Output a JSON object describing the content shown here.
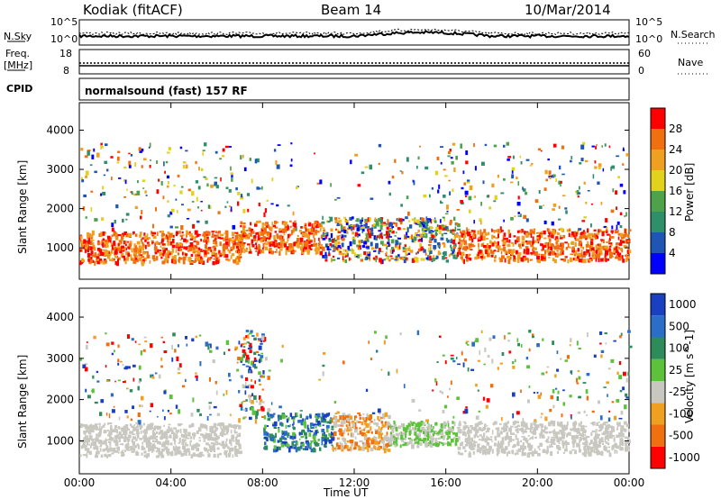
{
  "header": {
    "station": "Kodiak (fitACF)",
    "beam": "Beam 14",
    "date": "10/Mar/2014"
  },
  "strip": {
    "nsky_label": "N.Sky",
    "nsky_top": "10^5",
    "nsky_bottom": "10^0",
    "nsearch_label": "N.Search",
    "nsearch_top": "10^5",
    "nsearch_bottom": "10^0",
    "freq_label": "Freq.",
    "freq_unit": "[MHz]",
    "freq_top": "18",
    "freq_bottom": "8",
    "nave_label": "Nave",
    "nave_top": "60",
    "nave_bottom": "0",
    "cpid_label": "CPID",
    "cpid_value": "normalsound (fast) 157 RF"
  },
  "chart_data": [
    {
      "type": "heatmap",
      "panel": "power",
      "ylabel": "Slant Range [km]",
      "yticks": [
        1000,
        2000,
        3000,
        4000
      ],
      "ylim": [
        200,
        4700
      ],
      "xlim": [
        0,
        24
      ],
      "colorbar": {
        "label": "Power [dB]",
        "ticks": [
          "4",
          "8",
          "12",
          "16",
          "20",
          "24",
          "28"
        ],
        "colors": [
          "#0000ff",
          "#1f55b4",
          "#2f8f6a",
          "#4ea24a",
          "#e3d21b",
          "#f0a020",
          "#f07010",
          "#ff0000"
        ]
      },
      "bands": [
        {
          "t0": 0,
          "t1": 7,
          "r_lo": 650,
          "r_hi": 1450,
          "level": "high"
        },
        {
          "t0": 7,
          "t1": 10.5,
          "r_lo": 900,
          "r_hi": 1700,
          "level": "high"
        },
        {
          "t0": 10.5,
          "t1": 16.5,
          "r_lo": 700,
          "r_hi": 1800,
          "level": "mixed"
        },
        {
          "t0": 16.5,
          "t1": 24,
          "r_lo": 700,
          "r_hi": 1500,
          "level": "high"
        }
      ]
    },
    {
      "type": "heatmap",
      "panel": "velocity",
      "ylabel": "Slant Range [km]",
      "yticks": [
        1000,
        2000,
        3000,
        4000
      ],
      "ylim": [
        200,
        4700
      ],
      "xlim": [
        0,
        24
      ],
      "colorbar": {
        "label": "Velocity [m s^-1]",
        "ticks": [
          "1000",
          "500",
          "100",
          "25",
          "-25",
          "-100",
          "-500",
          "-1000"
        ],
        "colors": [
          "#1840c0",
          "#2a6ec8",
          "#2e8c5a",
          "#5cc23a",
          "#c8c8c0",
          "#f0a020",
          "#f07010",
          "#ff0000"
        ]
      },
      "bands": [
        {
          "t0": 0,
          "t1": 7,
          "r_lo": 650,
          "r_hi": 1450,
          "level": "ground"
        },
        {
          "t0": 8,
          "t1": 11,
          "r_lo": 800,
          "r_hi": 1700,
          "level": "positive"
        },
        {
          "t0": 11,
          "t1": 13.5,
          "r_lo": 800,
          "r_hi": 1700,
          "level": "negative"
        },
        {
          "t0": 13.5,
          "t1": 16.5,
          "r_lo": 900,
          "r_hi": 1500,
          "level": "weak"
        },
        {
          "t0": 16.5,
          "t1": 24,
          "r_lo": 700,
          "r_hi": 1500,
          "level": "ground"
        }
      ]
    }
  ],
  "xaxis": {
    "ticks": [
      "00:00",
      "04:00",
      "08:00",
      "12:00",
      "16:00",
      "20:00",
      "00:00"
    ],
    "label": "Time UT"
  }
}
